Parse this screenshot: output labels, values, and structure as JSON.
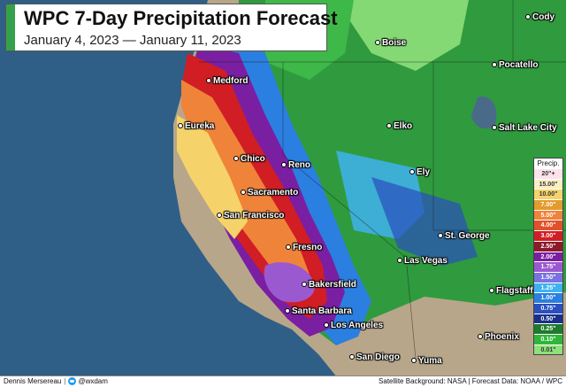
{
  "title": "WPC 7-Day Precipitation Forecast",
  "subtitle": "January 4, 2023 — January 11, 2023",
  "cities": [
    {
      "id": "cody",
      "name": "Cody"
    },
    {
      "id": "boise",
      "name": "Boise"
    },
    {
      "id": "pocatello",
      "name": "Pocatello"
    },
    {
      "id": "medford",
      "name": "Medford"
    },
    {
      "id": "eureka",
      "name": "Eureka"
    },
    {
      "id": "elko",
      "name": "Elko"
    },
    {
      "id": "salt-lake-city",
      "name": "Salt Lake City"
    },
    {
      "id": "chico",
      "name": "Chico"
    },
    {
      "id": "reno",
      "name": "Reno"
    },
    {
      "id": "ely",
      "name": "Ely"
    },
    {
      "id": "sacramento",
      "name": "Sacramento"
    },
    {
      "id": "san-francisco",
      "name": "San Francisco"
    },
    {
      "id": "st-george",
      "name": "St. George"
    },
    {
      "id": "fresno",
      "name": "Fresno"
    },
    {
      "id": "las-vegas",
      "name": "Las Vegas"
    },
    {
      "id": "bakersfield",
      "name": "Bakersfield"
    },
    {
      "id": "flagstaff",
      "name": "Flagstaff"
    },
    {
      "id": "santa-barbara",
      "name": "Santa Barbara"
    },
    {
      "id": "los-angeles",
      "name": "Los Angeles"
    },
    {
      "id": "phoenix",
      "name": "Phoenix"
    },
    {
      "id": "san-diego",
      "name": "San Diego"
    },
    {
      "id": "yuma",
      "name": "Yuma"
    }
  ],
  "legend": {
    "title": "Precip.",
    "items": [
      {
        "label": "20\"+",
        "color": "#fde2ea",
        "text": "#333333"
      },
      {
        "label": "15.00\"",
        "color": "#fbeec3",
        "text": "#333333"
      },
      {
        "label": "10.00\"",
        "color": "#f6d36a",
        "text": "#333333"
      },
      {
        "label": "7.00\"",
        "color": "#e49a2e",
        "text": "#ffffff"
      },
      {
        "label": "5.00\"",
        "color": "#f0833a",
        "text": "#ffffff"
      },
      {
        "label": "4.00\"",
        "color": "#e2512a",
        "text": "#ffffff"
      },
      {
        "label": "3.00\"",
        "color": "#d11d24",
        "text": "#ffffff"
      },
      {
        "label": "2.50\"",
        "color": "#8c1a2b",
        "text": "#ffffff"
      },
      {
        "label": "2.00\"",
        "color": "#7a1fa2",
        "text": "#ffffff"
      },
      {
        "label": "1.75\"",
        "color": "#9b59d0",
        "text": "#ffffff"
      },
      {
        "label": "1.50\"",
        "color": "#7a72e2",
        "text": "#ffffff"
      },
      {
        "label": "1.25\"",
        "color": "#3fb1ef",
        "text": "#ffffff"
      },
      {
        "label": "1.00\"",
        "color": "#2b7fe0",
        "text": "#ffffff"
      },
      {
        "label": "0.75\"",
        "color": "#2a4fbf",
        "text": "#ffffff"
      },
      {
        "label": "0.50\"",
        "color": "#1a2f8a",
        "text": "#ffffff"
      },
      {
        "label": "0.25\"",
        "color": "#1f7a2c",
        "text": "#ffffff"
      },
      {
        "label": "0.10\"",
        "color": "#2fb63a",
        "text": "#ffffff"
      },
      {
        "label": "0.01\"",
        "color": "#8ee07a",
        "text": "#333333"
      }
    ]
  },
  "footer": {
    "author": "Dennis Mersereau",
    "handle": "@wxdam",
    "credits": "Satellite Background: NASA | Forecast Data: NOAA / WPC"
  }
}
